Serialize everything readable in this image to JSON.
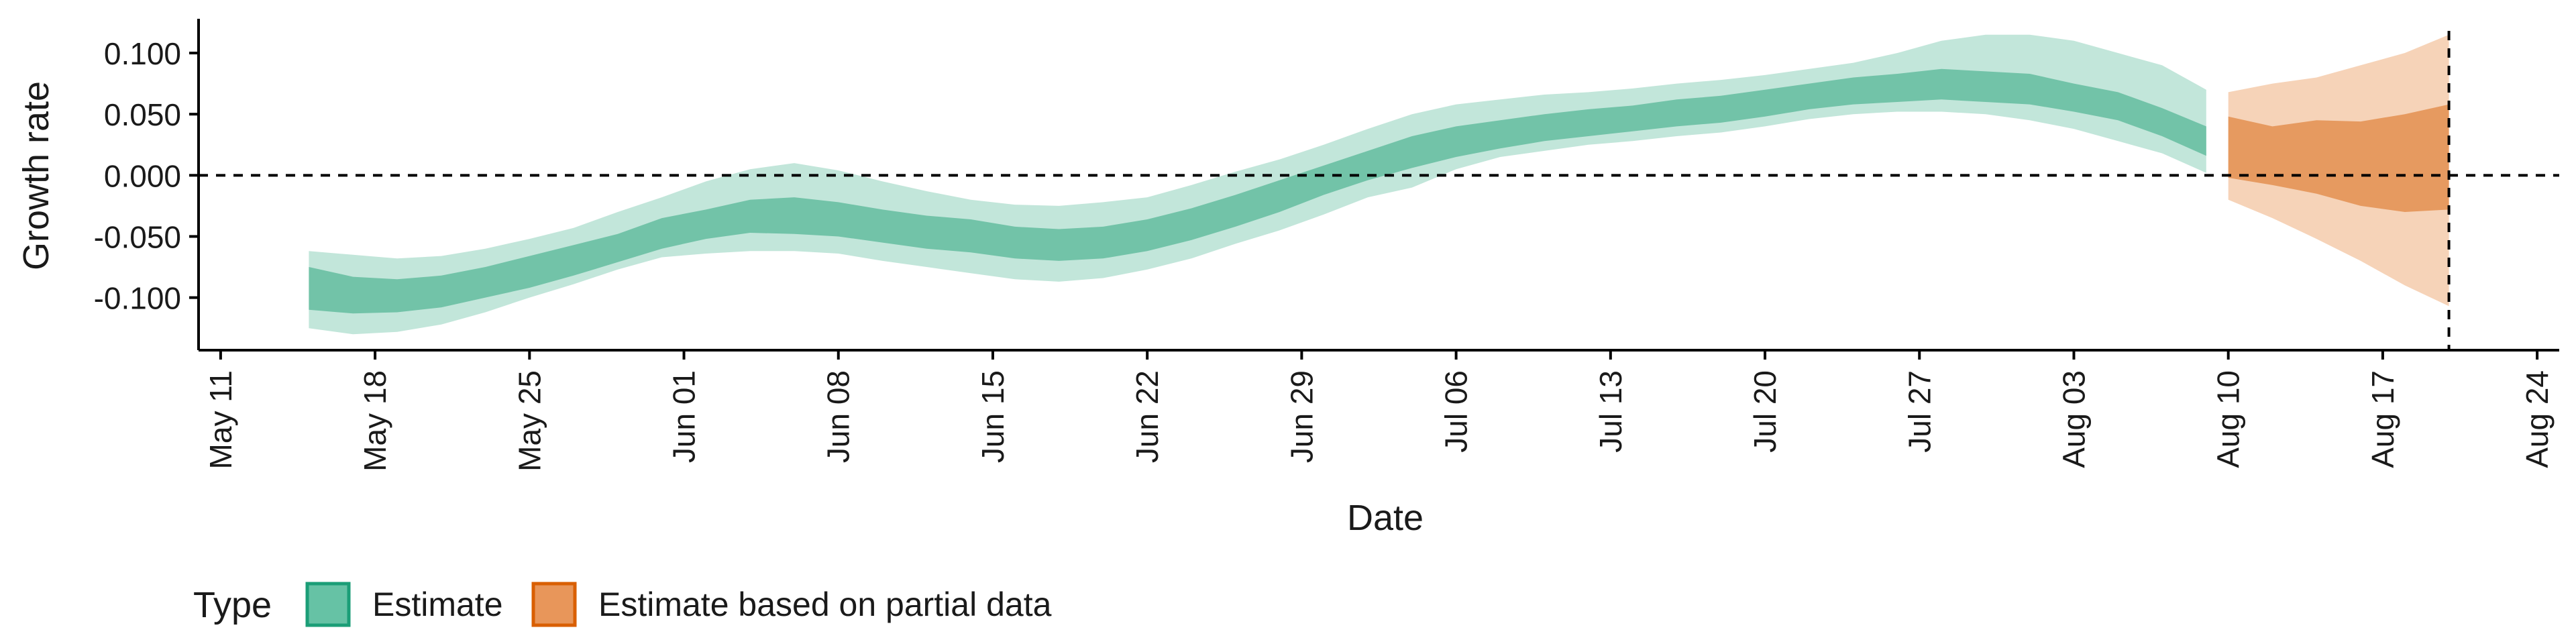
{
  "chart_data": {
    "type": "area",
    "xlabel": "Date",
    "ylabel": "Growth rate",
    "ylim": [
      -0.143,
      0.128
    ],
    "xlim": [
      "2020-05-10",
      "2020-08-25"
    ],
    "x_ticks": [
      "2020-05-11",
      "2020-05-18",
      "2020-05-25",
      "2020-06-01",
      "2020-06-08",
      "2020-06-15",
      "2020-06-22",
      "2020-06-29",
      "2020-07-06",
      "2020-07-13",
      "2020-07-20",
      "2020-07-27",
      "2020-08-03",
      "2020-08-10",
      "2020-08-17",
      "2020-08-24"
    ],
    "x_tick_labels": [
      "May 11",
      "May 18",
      "May 25",
      "Jun 01",
      "Jun 08",
      "Jun 15",
      "Jun 22",
      "Jun 29",
      "Jul 06",
      "Jul 13",
      "Jul 20",
      "Jul 27",
      "Aug 03",
      "Aug 10",
      "Aug 17",
      "Aug 24"
    ],
    "y_ticks": [
      0.1,
      0.05,
      0.0,
      -0.05,
      -0.1
    ],
    "y_tick_labels": [
      "0.100",
      "0.050",
      "0.000",
      "-0.050",
      "-0.100"
    ],
    "reference_lines": {
      "y": 0.0,
      "x": "2020-08-20",
      "style": "dashed"
    },
    "grid": false,
    "legend": {
      "title": "Type",
      "position": "bottom-left",
      "entries": [
        {
          "label": "Estimate",
          "color": "#66c2a5"
        },
        {
          "label": "Estimate based on partial data",
          "color": "#e8965a"
        }
      ]
    },
    "series": [
      {
        "name": "Estimate",
        "color": "#1b9e77",
        "x": [
          "2020-05-15",
          "2020-05-17",
          "2020-05-19",
          "2020-05-21",
          "2020-05-23",
          "2020-05-25",
          "2020-05-27",
          "2020-05-29",
          "2020-05-31",
          "2020-06-02",
          "2020-06-04",
          "2020-06-06",
          "2020-06-08",
          "2020-06-10",
          "2020-06-12",
          "2020-06-14",
          "2020-06-16",
          "2020-06-18",
          "2020-06-20",
          "2020-06-22",
          "2020-06-24",
          "2020-06-26",
          "2020-06-28",
          "2020-06-30",
          "2020-07-02",
          "2020-07-04",
          "2020-07-06",
          "2020-07-08",
          "2020-07-10",
          "2020-07-12",
          "2020-07-14",
          "2020-07-16",
          "2020-07-18",
          "2020-07-20",
          "2020-07-22",
          "2020-07-24",
          "2020-07-26",
          "2020-07-28",
          "2020-07-30",
          "2020-08-01",
          "2020-08-03",
          "2020-08-05",
          "2020-08-07",
          "2020-08-09"
        ],
        "inner_lower": [
          -0.11,
          -0.113,
          -0.112,
          -0.108,
          -0.1,
          -0.092,
          -0.082,
          -0.071,
          -0.06,
          -0.052,
          -0.047,
          -0.048,
          -0.05,
          -0.055,
          -0.06,
          -0.063,
          -0.068,
          -0.07,
          -0.068,
          -0.062,
          -0.053,
          -0.042,
          -0.03,
          -0.016,
          -0.004,
          0.006,
          0.015,
          0.022,
          0.028,
          0.032,
          0.036,
          0.04,
          0.043,
          0.048,
          0.054,
          0.058,
          0.06,
          0.062,
          0.06,
          0.058,
          0.052,
          0.045,
          0.032,
          0.016
        ],
        "inner_upper": [
          -0.075,
          -0.083,
          -0.085,
          -0.082,
          -0.075,
          -0.066,
          -0.057,
          -0.048,
          -0.035,
          -0.028,
          -0.02,
          -0.018,
          -0.022,
          -0.028,
          -0.033,
          -0.036,
          -0.042,
          -0.044,
          -0.042,
          -0.036,
          -0.027,
          -0.016,
          -0.004,
          0.008,
          0.02,
          0.032,
          0.04,
          0.045,
          0.05,
          0.054,
          0.057,
          0.062,
          0.065,
          0.07,
          0.075,
          0.08,
          0.083,
          0.087,
          0.085,
          0.083,
          0.075,
          0.068,
          0.055,
          0.04
        ],
        "outer_lower": [
          -0.125,
          -0.13,
          -0.128,
          -0.122,
          -0.112,
          -0.1,
          -0.089,
          -0.077,
          -0.067,
          -0.064,
          -0.062,
          -0.062,
          -0.064,
          -0.07,
          -0.075,
          -0.08,
          -0.085,
          -0.087,
          -0.084,
          -0.077,
          -0.068,
          -0.056,
          -0.045,
          -0.032,
          -0.018,
          -0.01,
          0.005,
          0.015,
          0.02,
          0.025,
          0.028,
          0.032,
          0.035,
          0.04,
          0.046,
          0.05,
          0.052,
          0.052,
          0.05,
          0.045,
          0.038,
          0.028,
          0.018,
          0.002
        ],
        "outer_upper": [
          -0.062,
          -0.065,
          -0.068,
          -0.066,
          -0.06,
          -0.052,
          -0.043,
          -0.03,
          -0.018,
          -0.005,
          0.005,
          0.01,
          0.004,
          -0.005,
          -0.013,
          -0.02,
          -0.024,
          -0.025,
          -0.022,
          -0.018,
          -0.008,
          0.003,
          0.013,
          0.025,
          0.038,
          0.05,
          0.058,
          0.062,
          0.066,
          0.068,
          0.071,
          0.075,
          0.078,
          0.082,
          0.087,
          0.092,
          0.1,
          0.11,
          0.115,
          0.115,
          0.11,
          0.1,
          0.09,
          0.07
        ]
      },
      {
        "name": "Estimate based on partial data",
        "color": "#d95f02",
        "x": [
          "2020-08-10",
          "2020-08-12",
          "2020-08-14",
          "2020-08-16",
          "2020-08-18",
          "2020-08-20"
        ],
        "inner_lower": [
          -0.002,
          -0.008,
          -0.015,
          -0.025,
          -0.03,
          -0.028
        ],
        "inner_upper": [
          0.048,
          0.04,
          0.045,
          0.044,
          0.05,
          0.058
        ],
        "outer_lower": [
          -0.02,
          -0.035,
          -0.052,
          -0.07,
          -0.09,
          -0.107
        ],
        "outer_upper": [
          0.068,
          0.075,
          0.08,
          0.09,
          0.1,
          0.115
        ]
      }
    ]
  }
}
